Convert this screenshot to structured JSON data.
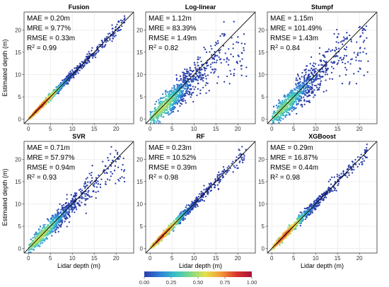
{
  "chart_data": [
    {
      "type": "scatter",
      "title": "Fusion",
      "stats": [
        {
          "label": "MAE",
          "value": "0.20m"
        },
        {
          "label": "MRE",
          "value": "9.77%"
        },
        {
          "label": "RMSE",
          "value": "0.33m"
        },
        {
          "label": "R",
          "sup": "2",
          "value": "0.99"
        }
      ],
      "fit": {
        "slope": 1.0,
        "spread": 0.33,
        "sat": null
      },
      "density_peak": 0.95,
      "xlim": [
        -1,
        24
      ],
      "ylim": [
        -1,
        24
      ],
      "xticks": [
        0,
        5,
        10,
        15,
        20
      ],
      "yticks": [
        0,
        5,
        10,
        15,
        20
      ],
      "xlabel": "",
      "ylabel": "Estimated depth (m)",
      "grid": true,
      "identity_line": true
    },
    {
      "type": "scatter",
      "title": "Log-linear",
      "stats": [
        {
          "label": "MAE",
          "value": "1.12m"
        },
        {
          "label": "MRE",
          "value": "83.39%"
        },
        {
          "label": "RMSE",
          "value": "1.49m"
        },
        {
          "label": "R",
          "sup": "2",
          "value": "0.82"
        }
      ],
      "fit": {
        "slope": 0.9,
        "spread": 1.4,
        "sat": 14
      },
      "density_peak": 0.55,
      "xlim": [
        -1,
        24
      ],
      "ylim": [
        -1,
        24
      ],
      "xticks": [
        0,
        5,
        10,
        15,
        20
      ],
      "yticks": [
        0,
        5,
        10,
        15,
        20
      ],
      "xlabel": "",
      "ylabel": "",
      "grid": true,
      "identity_line": true
    },
    {
      "type": "scatter",
      "title": "Stumpf",
      "stats": [
        {
          "label": "MAE",
          "value": "1.15m"
        },
        {
          "label": "MRE",
          "value": "101.49%"
        },
        {
          "label": "RMSE",
          "value": "1.43m"
        },
        {
          "label": "R",
          "sup": "2",
          "value": "0.84"
        }
      ],
      "fit": {
        "slope": 0.95,
        "spread": 1.4,
        "sat": 15
      },
      "density_peak": 0.5,
      "xlim": [
        -1,
        24
      ],
      "ylim": [
        -1,
        24
      ],
      "xticks": [
        0,
        5,
        10,
        15,
        20
      ],
      "yticks": [
        0,
        5,
        10,
        15,
        20
      ],
      "xlabel": "",
      "ylabel": "",
      "grid": true,
      "identity_line": true
    },
    {
      "type": "scatter",
      "title": "SVR",
      "stats": [
        {
          "label": "MAE",
          "value": "0.71m"
        },
        {
          "label": "MRE",
          "value": "57.97%"
        },
        {
          "label": "RMSE",
          "value": "0.94m"
        },
        {
          "label": "R",
          "sup": "2",
          "value": "0.93"
        }
      ],
      "fit": {
        "slope": 0.97,
        "spread": 0.9,
        "sat": 18
      },
      "density_peak": 0.6,
      "xlim": [
        -1,
        24
      ],
      "ylim": [
        -1,
        24
      ],
      "xticks": [
        0,
        5,
        10,
        15,
        20
      ],
      "yticks": [
        0,
        5,
        10,
        15,
        20
      ],
      "xlabel": "Lidar depth (m)",
      "ylabel": "Estimated depth (m)",
      "grid": true,
      "identity_line": true
    },
    {
      "type": "scatter",
      "title": "RF",
      "stats": [
        {
          "label": "MAE",
          "value": "0.23m"
        },
        {
          "label": "MRE",
          "value": "10.52%"
        },
        {
          "label": "RMSE",
          "value": "0.39m"
        },
        {
          "label": "R",
          "sup": "2",
          "value": "0.98"
        }
      ],
      "fit": {
        "slope": 1.0,
        "spread": 0.4,
        "sat": null
      },
      "density_peak": 0.92,
      "xlim": [
        -1,
        24
      ],
      "ylim": [
        -1,
        24
      ],
      "xticks": [
        0,
        5,
        10,
        15,
        20
      ],
      "yticks": [
        0,
        5,
        10,
        15,
        20
      ],
      "xlabel": "Lidar depth (m)",
      "ylabel": "",
      "grid": true,
      "identity_line": true
    },
    {
      "type": "scatter",
      "title": "XGBoost",
      "stats": [
        {
          "label": "MAE",
          "value": "0.29m"
        },
        {
          "label": "MRE",
          "value": "16.87%"
        },
        {
          "label": "RMSE",
          "value": "0.44m"
        },
        {
          "label": "R",
          "sup": "2",
          "value": "0.98"
        }
      ],
      "fit": {
        "slope": 1.0,
        "spread": 0.45,
        "sat": null
      },
      "density_peak": 0.92,
      "xlim": [
        -1,
        24
      ],
      "ylim": [
        -1,
        24
      ],
      "xticks": [
        0,
        5,
        10,
        15,
        20
      ],
      "yticks": [
        0,
        5,
        10,
        15,
        20
      ],
      "xlabel": "Lidar depth (m)",
      "ylabel": "",
      "grid": true,
      "identity_line": true
    }
  ],
  "colorbar": {
    "ticks": [
      "0.00",
      "0.25",
      "0.50",
      "0.75",
      "1.00"
    ],
    "range": [
      0,
      1
    ],
    "colors": [
      "#2b3ea8",
      "#2f7fd8",
      "#37c1c8",
      "#7fd98a",
      "#e6e04a",
      "#f29a3a",
      "#d9352d",
      "#a8123c"
    ]
  },
  "colors": {
    "identity_line": "#000000",
    "grid": "#e6e6e6",
    "panel_border": "#333333"
  }
}
